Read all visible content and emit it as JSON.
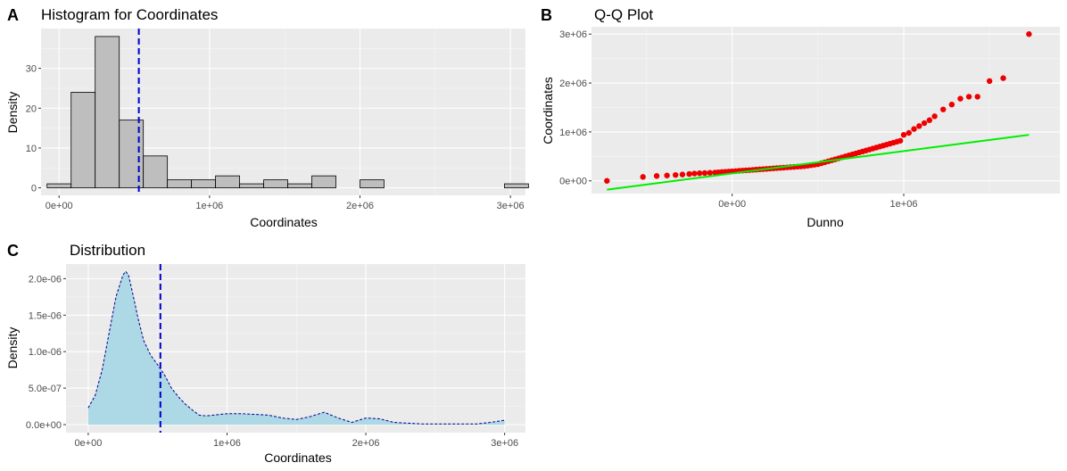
{
  "panels": {
    "A": {
      "letter": "A",
      "title": "Histogram for Coordinates",
      "xlabel": "Coordinates",
      "ylabel": "Density"
    },
    "B": {
      "letter": "B",
      "title": "Q-Q Plot",
      "xlabel": "Dunno",
      "ylabel": "Coordinates"
    },
    "C": {
      "letter": "C",
      "title": "Distribution",
      "xlabel": "Coordinates",
      "ylabel": "Density"
    }
  },
  "colors": {
    "hist_fill": "#bebebe",
    "hist_stroke": "#000000",
    "mean_line": "#0000cc",
    "points": "#ee0000",
    "ref_line": "#00ee00",
    "density_fill": "#add8e6",
    "density_stroke": "#00008b"
  },
  "chart_data": [
    {
      "id": "A",
      "type": "bar",
      "title": "Histogram for Coordinates",
      "xlabel": "Coordinates",
      "ylabel": "Density",
      "xlim": [
        -120000,
        3100000
      ],
      "ylim": [
        -1.9,
        40
      ],
      "x_ticks": [
        0,
        1000000,
        2000000,
        3000000
      ],
      "x_tick_labels": [
        "0e+00",
        "1e+06",
        "2e+06",
        "3e+06"
      ],
      "y_ticks": [
        0,
        10,
        20,
        30
      ],
      "y_tick_labels": [
        "0",
        "10",
        "20",
        "30"
      ],
      "bin_width": 160000,
      "bin_centers": [
        0,
        160000,
        320000,
        480000,
        640000,
        800000,
        960000,
        1120000,
        1280000,
        1440000,
        1600000,
        1760000,
        1920000,
        2080000,
        2240000,
        2400000,
        2560000,
        2720000,
        2880000,
        3040000
      ],
      "values": [
        1,
        24,
        38,
        17,
        8,
        2,
        2,
        3,
        1,
        2,
        1,
        3,
        0,
        2,
        0,
        0,
        0,
        0,
        0,
        1
      ],
      "mean_line_x": 530000,
      "grid": true
    },
    {
      "id": "B",
      "type": "scatter",
      "title": "Q-Q Plot",
      "xlabel": "Dunno",
      "ylabel": "Coordinates",
      "xlim": [
        -820000,
        1910000
      ],
      "ylim": [
        -260000,
        3150000
      ],
      "x_ticks": [
        0,
        1000000
      ],
      "x_tick_labels": [
        "0e+00",
        "1e+06"
      ],
      "y_ticks": [
        0,
        1000000,
        2000000,
        3000000
      ],
      "y_tick_labels": [
        "0e+00",
        "1e+06",
        "2e+06",
        "3e+06"
      ],
      "reference_line": {
        "x": [
          -730000,
          1730000
        ],
        "y": [
          -180000,
          940000
        ]
      },
      "x": [
        -730000,
        -520000,
        -440000,
        -380000,
        -330000,
        -290000,
        -250000,
        -220000,
        -190000,
        -160000,
        -130000,
        -100000,
        -80000,
        -60000,
        -40000,
        -20000,
        0,
        20000,
        40000,
        60000,
        80000,
        100000,
        120000,
        140000,
        160000,
        180000,
        200000,
        220000,
        240000,
        260000,
        280000,
        300000,
        320000,
        340000,
        360000,
        380000,
        400000,
        420000,
        440000,
        460000,
        480000,
        500000,
        520000,
        540000,
        560000,
        580000,
        600000,
        620000,
        640000,
        660000,
        680000,
        700000,
        720000,
        740000,
        760000,
        780000,
        800000,
        820000,
        840000,
        860000,
        880000,
        900000,
        920000,
        940000,
        960000,
        980000,
        1000000,
        1030000,
        1060000,
        1090000,
        1120000,
        1150000,
        1180000,
        1230000,
        1280000,
        1330000,
        1380000,
        1430000,
        1500000,
        1580000,
        1730000
      ],
      "y": [
        0,
        80000,
        100000,
        110000,
        120000,
        130000,
        140000,
        150000,
        155000,
        160000,
        165000,
        170000,
        175000,
        180000,
        185000,
        190000,
        195000,
        200000,
        205000,
        210000,
        215000,
        220000,
        225000,
        230000,
        235000,
        240000,
        245000,
        250000,
        255000,
        260000,
        265000,
        270000,
        275000,
        280000,
        285000,
        290000,
        295000,
        300000,
        310000,
        320000,
        330000,
        340000,
        360000,
        380000,
        400000,
        420000,
        440000,
        460000,
        480000,
        500000,
        520000,
        540000,
        560000,
        580000,
        600000,
        620000,
        640000,
        660000,
        680000,
        700000,
        720000,
        740000,
        760000,
        780000,
        800000,
        820000,
        940000,
        980000,
        1060000,
        1120000,
        1180000,
        1240000,
        1320000,
        1460000,
        1560000,
        1680000,
        1720000,
        1720000,
        2040000,
        2100000,
        3000000
      ],
      "grid": true
    },
    {
      "id": "C",
      "type": "area",
      "title": "Distribution",
      "xlabel": "Coordinates",
      "ylabel": "Density",
      "xlim": [
        -160000,
        3150000
      ],
      "ylim": [
        -1.1e-07,
        2.2e-06
      ],
      "x_ticks": [
        0,
        1000000,
        2000000,
        3000000
      ],
      "x_tick_labels": [
        "0e+00",
        "1e+06",
        "2e+06",
        "3e+06"
      ],
      "y_ticks": [
        0,
        5e-07,
        1e-06,
        1.5e-06,
        2e-06
      ],
      "y_tick_labels": [
        "0.0e+00",
        "5.0e-07",
        "1.0e-06",
        "1.5e-06",
        "2.0e-06"
      ],
      "x": [
        0,
        50000,
        100000,
        150000,
        200000,
        250000,
        270000,
        290000,
        320000,
        360000,
        400000,
        450000,
        500000,
        550000,
        600000,
        650000,
        700000,
        750000,
        800000,
        850000,
        900000,
        1000000,
        1100000,
        1200000,
        1300000,
        1400000,
        1500000,
        1600000,
        1700000,
        1800000,
        1900000,
        2000000,
        2100000,
        2200000,
        2400000,
        2600000,
        2800000,
        2900000,
        3000000
      ],
      "y": [
        2.3e-07,
        4e-07,
        7.5e-07,
        1.25e-06,
        1.75e-06,
        2.05e-06,
        2.1e-06,
        2.05e-06,
        1.8e-06,
        1.45e-06,
        1.15e-06,
        9.5e-07,
        8.2e-07,
        6.8e-07,
        5e-07,
        3.8e-07,
        2.8e-07,
        2e-07,
        1.3e-07,
        1.2e-07,
        1.3e-07,
        1.5e-07,
        1.5e-07,
        1.4e-07,
        1.3e-07,
        9e-08,
        7e-08,
        1.1e-07,
        1.7e-07,
        9e-08,
        3e-08,
        9e-08,
        8e-08,
        3e-08,
        1e-08,
        1e-08,
        1e-08,
        3e-08,
        6e-08
      ],
      "mean_line_x": 520000,
      "grid": true
    }
  ]
}
